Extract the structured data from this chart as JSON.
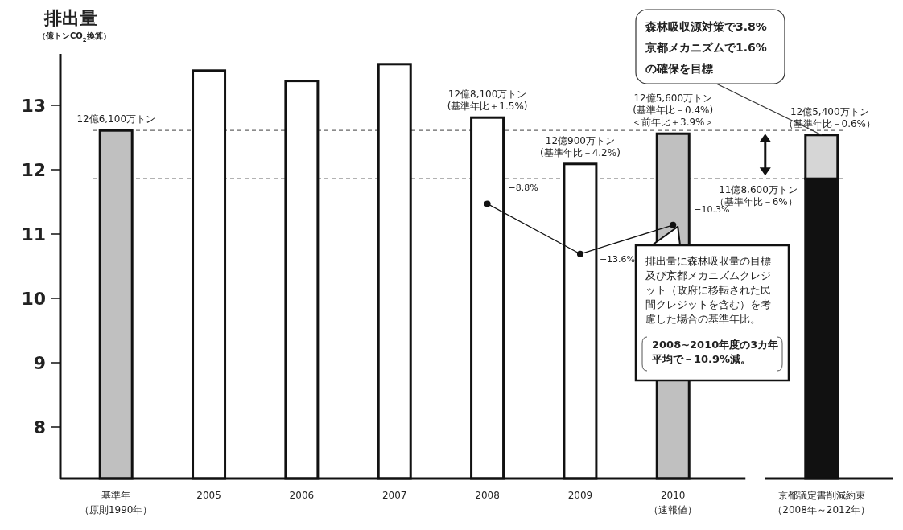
{
  "chart_data": {
    "type": "bar",
    "ylabel": "排出量（億トンCO$_{2}$換算）",
    "categories": [
      "基準年（原則1990年）",
      "2005",
      "2006",
      "2007",
      "2008",
      "2009",
      "2010（速報値）",
      "京都議定書削減約束（2008年～2012年）"
    ],
    "ylim": [
      7.2,
      13.8
    ],
    "yticks": [
      8,
      9,
      10,
      11,
      12,
      13
    ],
    "marker": "circle",
    "line_style": "solid",
    "series": [
      {
        "colors": [
          "#c0c0c0",
          "#ffffff",
          "#ffffff",
          "#ffffff",
          "#ffffff",
          "#ffffff",
          "#c0c0c0",
          "#111111"
        ],
        "values": [
          12.61,
          13.54,
          13.38,
          13.64,
          12.81,
          12.09,
          12.56,
          11.86
        ]
      },
      {
        "color": "#d6d6d6",
        "values": [
          null,
          null,
          null,
          null,
          null,
          null,
          null,
          0.68
        ],
        "base": [
          null,
          null,
          null,
          null,
          null,
          null,
          null,
          11.86
        ]
      },
      {
        "type": "line",
        "color": "#111111",
        "values": [
          null,
          null,
          null,
          null,
          11.47,
          10.69,
          11.14,
          null
        ]
      }
    ],
    "ref_lines": [
      {
        "axis": "y",
        "value": 12.61,
        "color": "#666666",
        "line_style": "dashed"
      },
      {
        "axis": "y",
        "value": 11.86,
        "color": "#666666",
        "line_style": "dashed"
      }
    ],
    "annotations": [
      {
        "text": "森林吸収源対策で3.8%京都メカニズムで1.6%の確保を目標",
        "x": "京都議定書削減約束（2008年～2012年）",
        "y": 12.54
      },
      {
        "text": "排出量に森林吸収量の目標及び京都メカニズムクレジット（政府に移転された民間クレジットを含む）を考慮した場合の基準年比。",
        "x": "2010（速報値）",
        "y": 11.14
      },
      "2008~2010年度の3カ年平均で－10.9%減。",
      {
        "text": "12億6,100万トン",
        "x": "基準年（原則1990年）",
        "y": 12.61
      },
      {
        "text": "12億8,100万トン(基準年比＋1.5%)",
        "x": "2008",
        "y": 12.81
      },
      {
        "text": "12億900万トン(基準年比－4.2%)",
        "x": "2009",
        "y": 12.09
      },
      {
        "text": "12億5,600万トン(基準年比－0.4%)＜前年比＋3.9%＞",
        "x": "2010（速報値）",
        "y": 12.56
      },
      {
        "text": "12億5,400万トン（基準年比－0.6%）",
        "x": "京都議定書削減約束（2008年～2012年）",
        "y": 12.54
      },
      {
        "text": "11億8,600万トン（基準年比－6%）",
        "x": "京都議定書削減約束（2008年～2012年）",
        "y": 11.86
      },
      {
        "text": "−8.8%",
        "x": "2008",
        "y": 11.47
      },
      {
        "text": "−13.6%",
        "x": "2009",
        "y": 10.69
      },
      {
        "text": "−10.3%",
        "x": "2010（速報値）",
        "y": 11.14
      }
    ]
  }
}
